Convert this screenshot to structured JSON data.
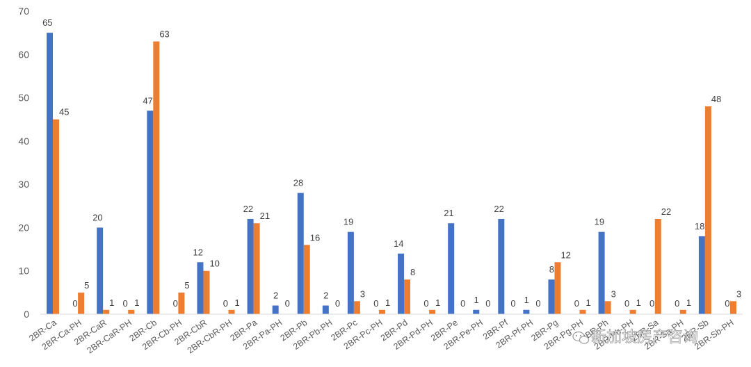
{
  "chart_data": {
    "type": "bar",
    "title": "",
    "xlabel": "",
    "ylabel": "",
    "ylim": [
      0,
      70
    ],
    "yticks": [
      0,
      10,
      20,
      30,
      40,
      50,
      60,
      70
    ],
    "grid": false,
    "legend": "none",
    "categories": [
      "2BR-Ca",
      "2BR-Ca-PH",
      "2BR-CaR",
      "2BR-CaR-PH",
      "2BR-Cb",
      "2BR-Cb-PH",
      "2BR-CbR",
      "2BR-CbR-PH",
      "2BR-Pa",
      "2BR-Pa-PH",
      "2BR-Pb",
      "2BR-Pb-PH",
      "2BR-Pc",
      "2BR-Pc-PH",
      "2BR-Pd",
      "2BR-Pd-PH",
      "2BR-Pe",
      "2BR-Pe-PH",
      "2BR-Pf",
      "2BR-Pf-PH",
      "2BR-Pg",
      "2BR-Pg-PH",
      "2BR-Ph",
      "2BR-Ph-PH",
      "2BR-Sa",
      "2BR-Sa-PH",
      "2BR-Sb",
      "2BR-Sb-PH"
    ],
    "series": [
      {
        "color": "#4472c4",
        "values": [
          65,
          0,
          20,
          0,
          47,
          0,
          12,
          0,
          22,
          2,
          28,
          2,
          19,
          0,
          14,
          0,
          21,
          1,
          22,
          1,
          8,
          0,
          19,
          0,
          0,
          0,
          18,
          0
        ]
      },
      {
        "color": "#ed7d31",
        "values": [
          45,
          5,
          1,
          1,
          63,
          5,
          10,
          1,
          21,
          0,
          16,
          0,
          3,
          1,
          8,
          1,
          0,
          0,
          0,
          0,
          12,
          1,
          3,
          1,
          22,
          1,
          48,
          3
        ]
      }
    ]
  },
  "watermark": {
    "icon": "wechat-icon",
    "text": "新加坡房产咨询"
  }
}
